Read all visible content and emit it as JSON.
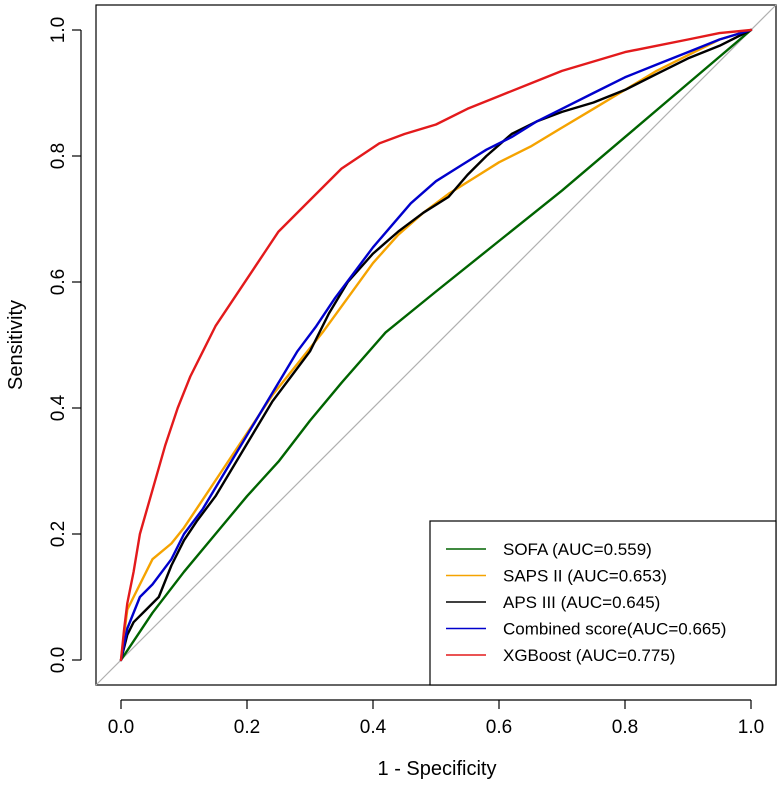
{
  "chart_data": {
    "type": "line",
    "title": "",
    "xlabel": "1 - Specificity",
    "ylabel": "Sensitivity",
    "xlim": [
      0,
      1
    ],
    "ylim": [
      0,
      1
    ],
    "xticks": [
      "0.0",
      "0.2",
      "0.4",
      "0.6",
      "0.8",
      "1.0"
    ],
    "yticks": [
      "0.0",
      "0.2",
      "0.4",
      "0.6",
      "0.8",
      "1.0"
    ],
    "grid": false,
    "legend_position": "bottom-right",
    "reference_line": {
      "name": "chance",
      "color": "#b0b0b0",
      "x": [
        0,
        1
      ],
      "y": [
        0,
        1
      ]
    },
    "series": [
      {
        "name": "SOFA",
        "label": "SOFA (AUC=0.559)",
        "color": "#006400",
        "x": [
          0,
          0.05,
          0.1,
          0.15,
          0.2,
          0.25,
          0.3,
          0.35,
          0.42,
          0.5,
          0.6,
          0.7,
          0.8,
          0.9,
          1.0
        ],
        "y": [
          0,
          0.075,
          0.14,
          0.2,
          0.26,
          0.315,
          0.38,
          0.44,
          0.52,
          0.585,
          0.665,
          0.745,
          0.83,
          0.915,
          1.0
        ]
      },
      {
        "name": "SAPS II",
        "label": "SAPS II (AUC=0.653)",
        "color": "#f5a300",
        "x": [
          0,
          0.01,
          0.03,
          0.05,
          0.08,
          0.1,
          0.13,
          0.16,
          0.2,
          0.24,
          0.28,
          0.32,
          0.36,
          0.4,
          0.44,
          0.48,
          0.52,
          0.56,
          0.6,
          0.65,
          0.7,
          0.75,
          0.8,
          0.85,
          0.9,
          0.95,
          1.0
        ],
        "y": [
          0,
          0.08,
          0.12,
          0.16,
          0.185,
          0.21,
          0.255,
          0.3,
          0.36,
          0.42,
          0.47,
          0.52,
          0.575,
          0.63,
          0.675,
          0.71,
          0.74,
          0.765,
          0.79,
          0.815,
          0.845,
          0.875,
          0.905,
          0.935,
          0.96,
          0.985,
          1.0
        ]
      },
      {
        "name": "APS III",
        "label": "APS III (AUC=0.645)",
        "color": "#000000",
        "x": [
          0,
          0.01,
          0.02,
          0.04,
          0.06,
          0.08,
          0.1,
          0.12,
          0.15,
          0.18,
          0.21,
          0.24,
          0.27,
          0.3,
          0.33,
          0.36,
          0.4,
          0.44,
          0.48,
          0.52,
          0.55,
          0.58,
          0.62,
          0.66,
          0.7,
          0.75,
          0.8,
          0.85,
          0.9,
          0.95,
          1.0
        ],
        "y": [
          0,
          0.04,
          0.06,
          0.08,
          0.1,
          0.15,
          0.19,
          0.22,
          0.26,
          0.31,
          0.36,
          0.41,
          0.45,
          0.49,
          0.55,
          0.6,
          0.645,
          0.68,
          0.71,
          0.735,
          0.77,
          0.8,
          0.835,
          0.855,
          0.87,
          0.885,
          0.905,
          0.93,
          0.955,
          0.975,
          1.0
        ]
      },
      {
        "name": "Combined score",
        "label": "Combined score(AUC=0.665)",
        "color": "#0000cc",
        "x": [
          0,
          0.01,
          0.03,
          0.05,
          0.08,
          0.1,
          0.13,
          0.16,
          0.19,
          0.22,
          0.25,
          0.28,
          0.31,
          0.34,
          0.37,
          0.4,
          0.43,
          0.46,
          0.5,
          0.54,
          0.58,
          0.62,
          0.66,
          0.7,
          0.75,
          0.8,
          0.85,
          0.9,
          0.95,
          1.0
        ],
        "y": [
          0,
          0.05,
          0.1,
          0.12,
          0.16,
          0.2,
          0.24,
          0.29,
          0.34,
          0.39,
          0.44,
          0.49,
          0.53,
          0.575,
          0.615,
          0.655,
          0.69,
          0.725,
          0.76,
          0.785,
          0.81,
          0.83,
          0.855,
          0.875,
          0.9,
          0.925,
          0.945,
          0.965,
          0.985,
          1.0
        ]
      },
      {
        "name": "XGBoost",
        "label": "XGBoost (AUC=0.775)",
        "color": "#e31a1c",
        "x": [
          0,
          0.005,
          0.01,
          0.02,
          0.03,
          0.05,
          0.07,
          0.09,
          0.11,
          0.13,
          0.15,
          0.17,
          0.19,
          0.21,
          0.23,
          0.25,
          0.27,
          0.29,
          0.32,
          0.35,
          0.38,
          0.41,
          0.45,
          0.5,
          0.55,
          0.6,
          0.65,
          0.7,
          0.75,
          0.8,
          0.85,
          0.9,
          0.95,
          1.0
        ],
        "y": [
          0,
          0.05,
          0.09,
          0.14,
          0.2,
          0.27,
          0.34,
          0.4,
          0.45,
          0.49,
          0.53,
          0.56,
          0.59,
          0.62,
          0.65,
          0.68,
          0.7,
          0.72,
          0.75,
          0.78,
          0.8,
          0.82,
          0.835,
          0.85,
          0.875,
          0.895,
          0.915,
          0.935,
          0.95,
          0.965,
          0.975,
          0.985,
          0.995,
          1.0
        ]
      }
    ]
  }
}
